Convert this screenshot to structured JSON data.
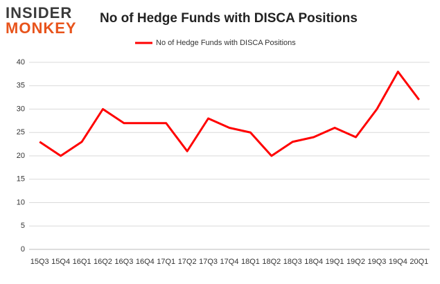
{
  "logo": {
    "top": "INSIDER",
    "bottom": "MONKEY"
  },
  "chart_data": {
    "type": "line",
    "title": "No of Hedge Funds with DISCA Positions",
    "categories": [
      "15Q3",
      "15Q4",
      "16Q1",
      "16Q2",
      "16Q3",
      "16Q4",
      "17Q1",
      "17Q2",
      "17Q3",
      "17Q4",
      "18Q1",
      "18Q2",
      "18Q3",
      "18Q4",
      "19Q1",
      "19Q2",
      "19Q3",
      "19Q4",
      "20Q1"
    ],
    "series": [
      {
        "name": "No of Hedge Funds with DISCA Positions",
        "color": "#ff0000",
        "values": [
          23,
          20,
          23,
          30,
          27,
          27,
          27,
          21,
          28,
          26,
          25,
          20,
          23,
          24,
          26,
          24,
          30,
          38,
          32
        ]
      }
    ],
    "ylim": [
      0,
      40
    ],
    "yticks": [
      0,
      5,
      10,
      15,
      20,
      25,
      30,
      35,
      40
    ],
    "grid": true,
    "legend": "top"
  }
}
